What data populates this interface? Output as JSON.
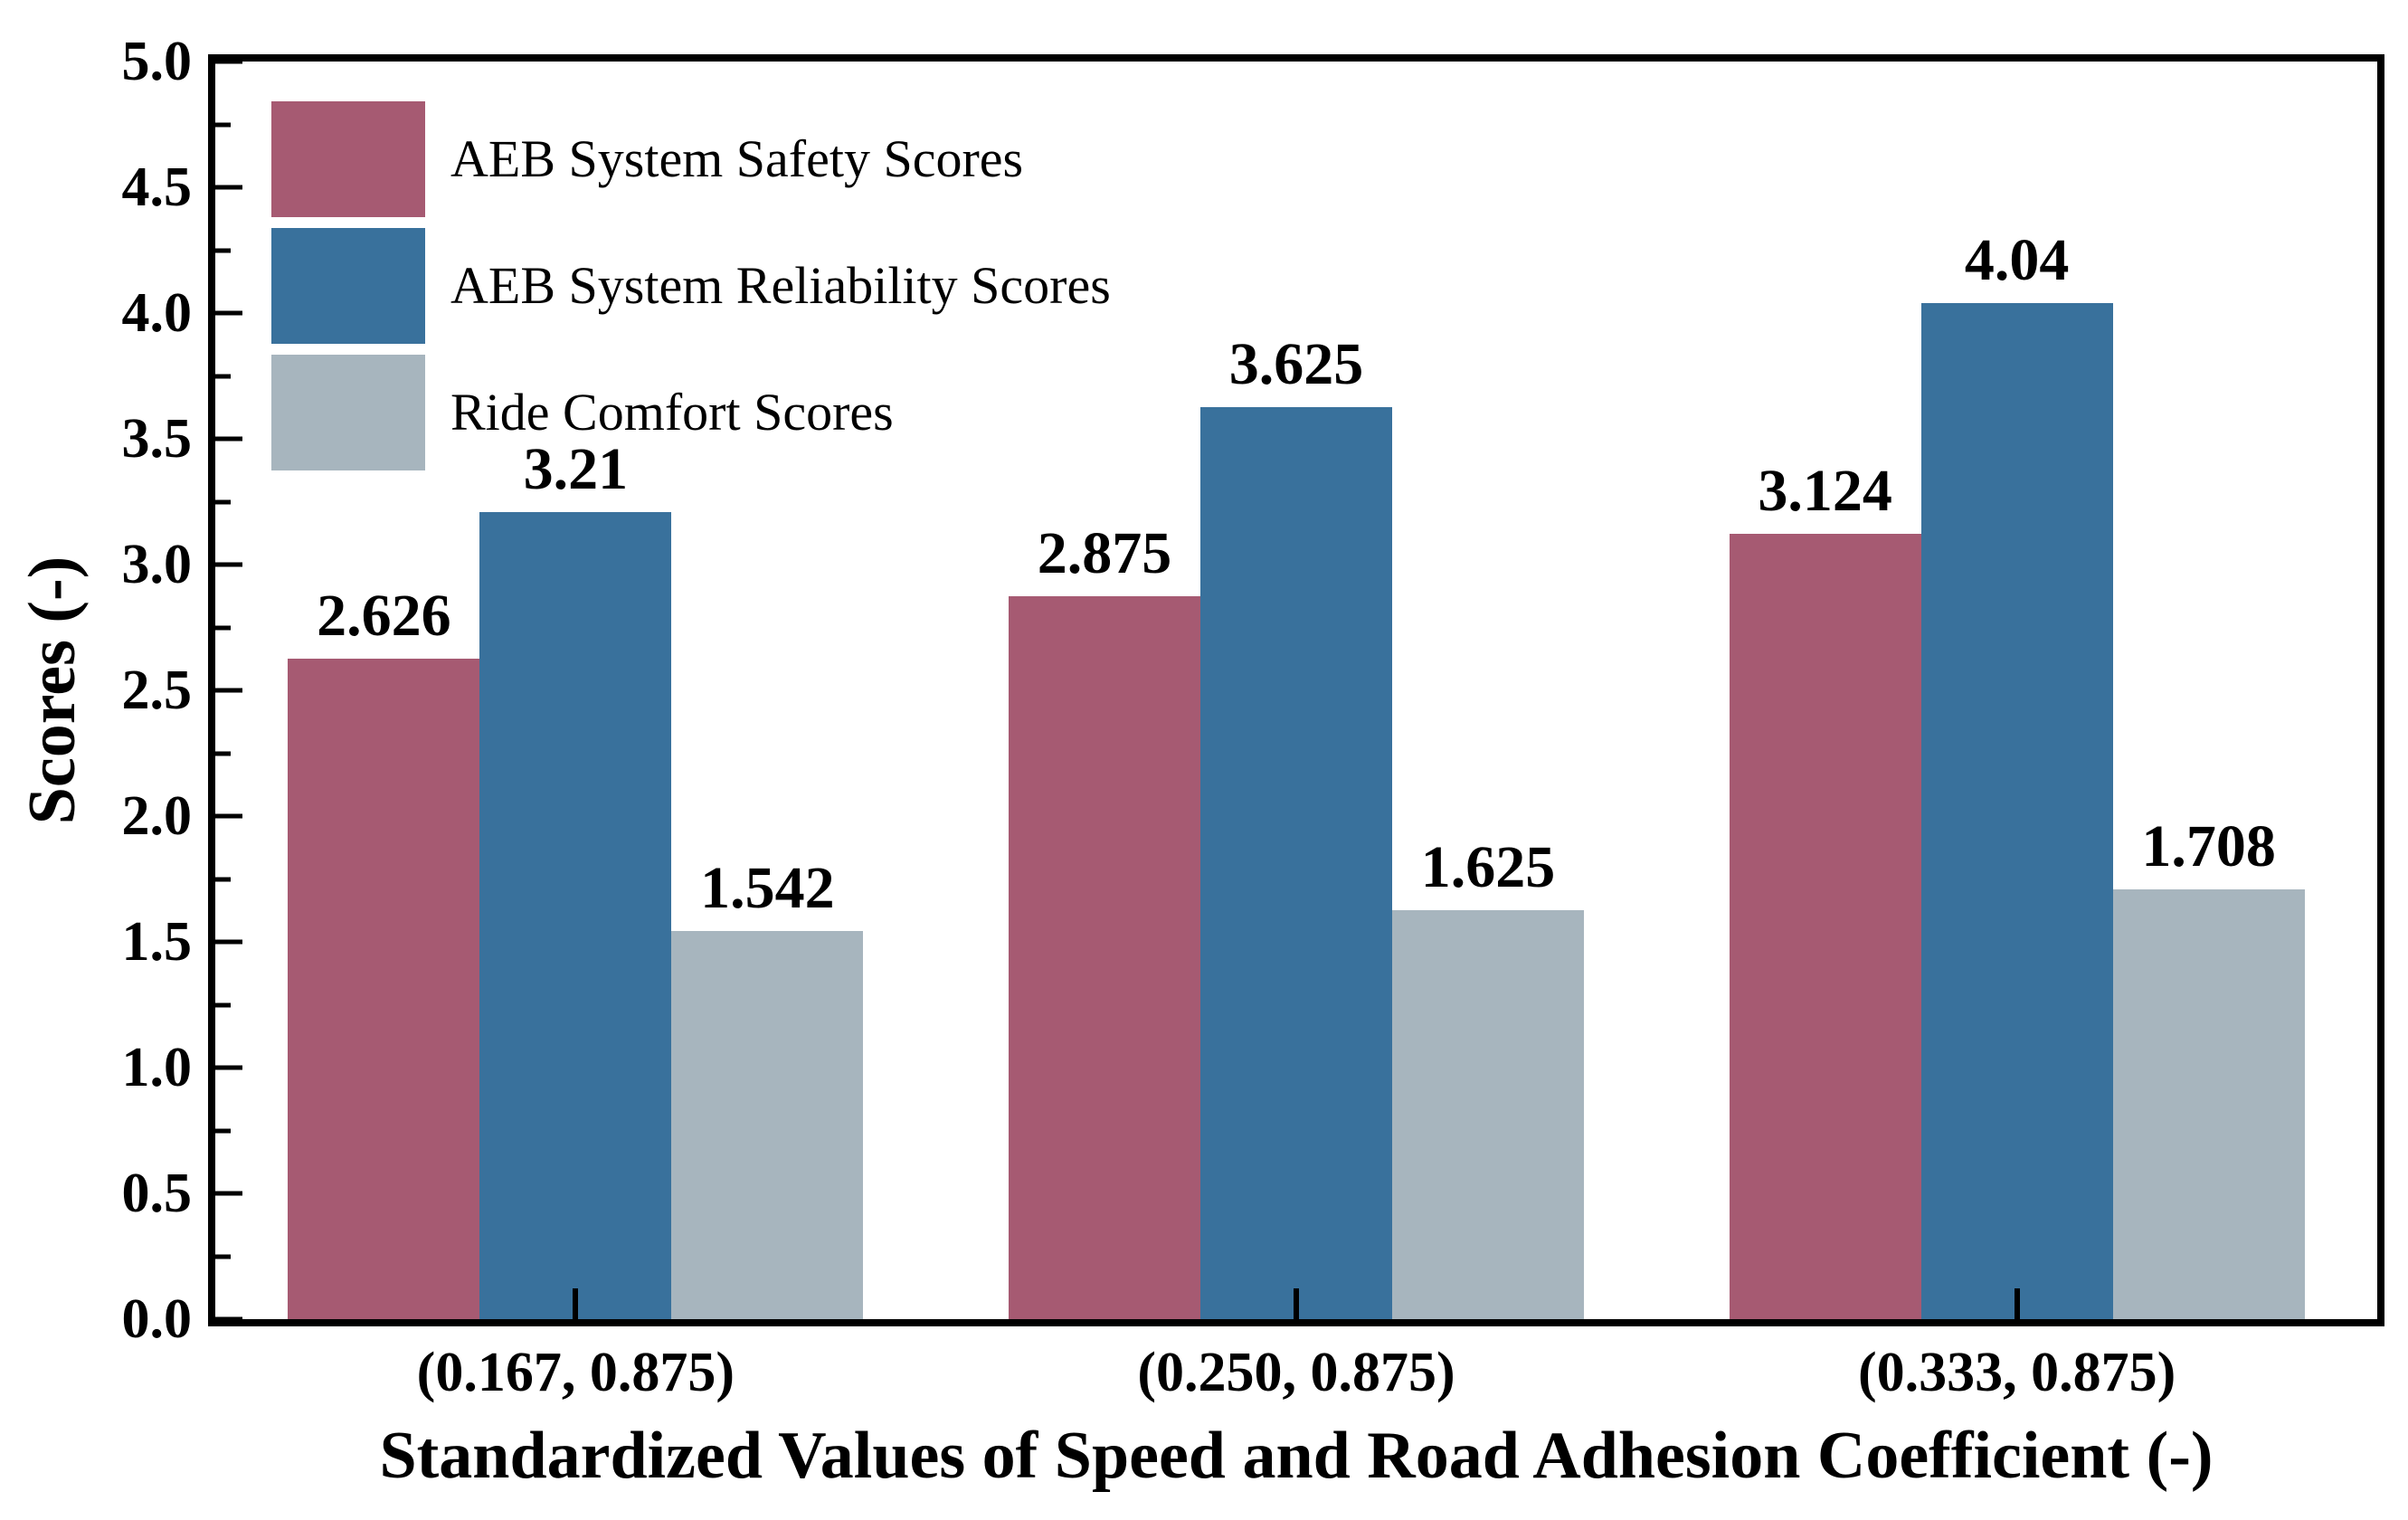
{
  "figure": {
    "background": "#ffffff",
    "frame_color": "#000000",
    "text_color": "#000000"
  },
  "chart_data": {
    "type": "bar",
    "title": "",
    "xlabel": "Standardized Values of Speed and Road Adhesion Coefficient (-)",
    "ylabel": "Scores (-)",
    "categories": [
      "(0.167, 0.875)",
      "(0.250, 0.875)",
      "(0.333, 0.875)"
    ],
    "series": [
      {
        "key": "safety",
        "name": "AEB System Safety Scores",
        "color": "#a65a72",
        "values": [
          2.626,
          2.875,
          3.124
        ],
        "labels": [
          "2.626",
          "2.875",
          "3.124"
        ]
      },
      {
        "key": "reliability",
        "name": "AEB System Reliability Scores",
        "color": "#39719c",
        "values": [
          3.21,
          3.625,
          4.04
        ],
        "labels": [
          "3.21",
          "3.625",
          "4.04"
        ]
      },
      {
        "key": "comfort",
        "name": "Ride Comfort Scores",
        "color": "#a7b5be",
        "values": [
          1.542,
          1.625,
          1.708
        ],
        "labels": [
          "1.542",
          "1.625",
          "1.708"
        ]
      }
    ],
    "ylim": [
      0,
      5
    ],
    "y_major_ticks": [
      "0.0",
      "0.5",
      "1.0",
      "1.5",
      "2.0",
      "2.5",
      "3.0",
      "3.5",
      "4.0",
      "4.5",
      "5.0"
    ],
    "y_minor_step": 0.25,
    "grid": false,
    "legend_position": "upper-left",
    "tick_direction": "in"
  }
}
